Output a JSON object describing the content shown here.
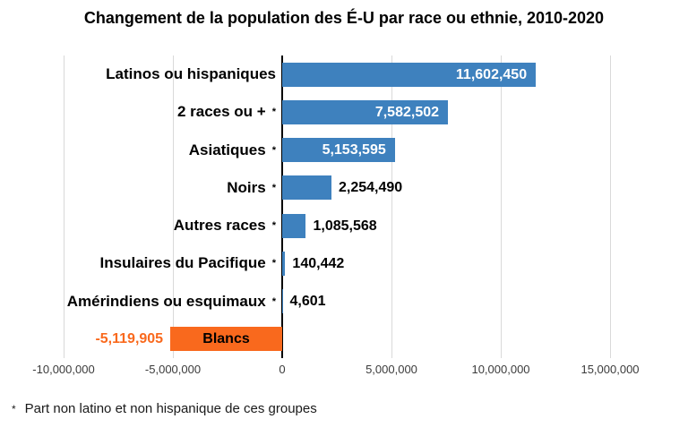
{
  "title": "Changement de la population des É-U par race ou ethnie, 2010-2020",
  "footnote": {
    "marker": "*",
    "text": "Part non latino et non hispanique de ces groupes"
  },
  "chart_data": {
    "type": "bar",
    "orientation": "horizontal",
    "title": "Changement de la population des É-U par race ou ethnie, 2010-2020",
    "categories": [
      "Latinos ou hispaniques",
      "2 races ou +",
      "Asiatiques",
      "Noirs",
      "Autres races",
      "Insulaires du Pacifique",
      "Amérindiens ou esquimaux",
      "Blancs"
    ],
    "values": [
      11602450,
      7582502,
      5153595,
      2254490,
      1085568,
      140442,
      4601,
      -5119905
    ],
    "value_labels": [
      "11,602,450",
      "7,582,502",
      "5,153,595",
      "2,254,490",
      "1,085,568",
      "140,442",
      "4,601",
      "-5,119,905"
    ],
    "asterisk_flags": [
      false,
      true,
      true,
      true,
      true,
      true,
      true,
      false
    ],
    "asterisk_marker": "*",
    "xlim": [
      -10000000,
      15000000
    ],
    "x_ticks": [
      {
        "value": -10000000,
        "label": "-10,000,000"
      },
      {
        "value": -5000000,
        "label": "-5,000,000"
      },
      {
        "value": 0,
        "label": "0"
      },
      {
        "value": 5000000,
        "label": "5,000,000"
      },
      {
        "value": 10000000,
        "label": "10,000,000"
      },
      {
        "value": 15000000,
        "label": "15,000,000"
      }
    ],
    "grid": "vertical",
    "legend": "none",
    "colors": {
      "positive_bar": "#3E81BE",
      "negative_bar": "#F9691D",
      "value_inside": "#FFFFFF",
      "value_outside": "#000000",
      "value_negative": "#F9691D",
      "gridline": "#D9D9D9",
      "axis_line": "#000000"
    }
  }
}
